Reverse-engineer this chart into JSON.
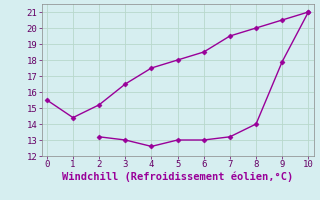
{
  "line1_x": [
    0,
    1,
    2,
    3,
    4,
    5,
    6,
    7,
    8,
    9,
    10
  ],
  "line1_y": [
    15.5,
    14.4,
    15.2,
    16.5,
    17.5,
    18.0,
    18.5,
    19.5,
    20.0,
    20.5,
    21.0
  ],
  "line2_x": [
    2,
    3,
    4,
    5,
    6,
    7,
    8,
    9,
    10
  ],
  "line2_y": [
    13.2,
    13.0,
    12.6,
    13.0,
    13.0,
    13.2,
    14.0,
    17.9,
    21.0
  ],
  "line_color": "#990099",
  "marker": "D",
  "markersize": 2.5,
  "linewidth": 1.0,
  "xlabel": "Windchill (Refroidissement éolien,°C)",
  "xlabel_color": "#990099",
  "xlim": [
    -0.2,
    10.2
  ],
  "ylim": [
    12,
    21.5
  ],
  "yticks": [
    12,
    13,
    14,
    15,
    16,
    17,
    18,
    19,
    20,
    21
  ],
  "xticks": [
    0,
    1,
    2,
    3,
    4,
    5,
    6,
    7,
    8,
    9,
    10
  ],
  "background_color": "#d6eef0",
  "grid_color": "#b8d8cc",
  "tick_color": "#660066",
  "font_family": "monospace",
  "xlabel_fontsize": 7.5,
  "tick_fontsize": 6.5
}
